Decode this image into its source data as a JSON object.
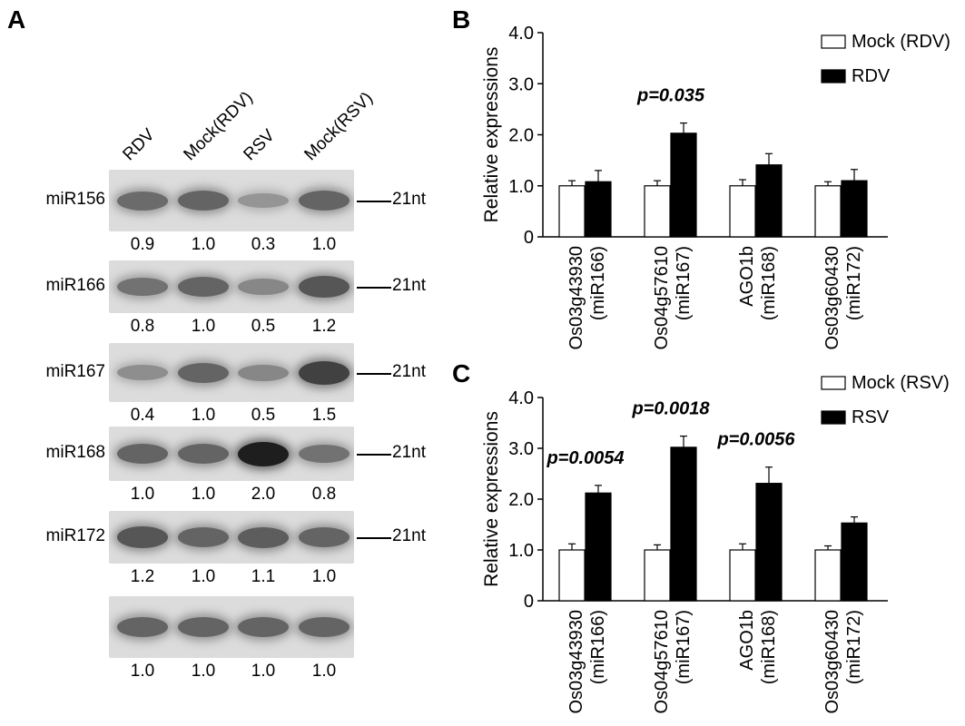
{
  "panels": {
    "a": "A",
    "b": "B",
    "c": "C"
  },
  "blot": {
    "lanes": [
      "RDV",
      "Mock(RDV)",
      "RSV",
      "Mock(RSV)"
    ],
    "rows": [
      {
        "label": "miR156",
        "marker": "21nt",
        "values": [
          "0.9",
          "1.0",
          "0.3",
          "1.0"
        ],
        "intensity": [
          0.9,
          1.0,
          0.3,
          1.0
        ]
      },
      {
        "label": "miR166",
        "marker": "21nt",
        "values": [
          "0.8",
          "1.0",
          "0.5",
          "1.2"
        ],
        "intensity": [
          0.8,
          1.0,
          0.5,
          1.2
        ]
      },
      {
        "label": "miR167",
        "marker": "21nt",
        "values": [
          "0.4",
          "1.0",
          "0.5",
          "1.5"
        ],
        "intensity": [
          0.4,
          1.0,
          0.5,
          1.5
        ]
      },
      {
        "label": "miR168",
        "marker": "21nt",
        "values": [
          "1.0",
          "1.0",
          "2.0",
          "0.8"
        ],
        "intensity": [
          1.0,
          1.0,
          2.0,
          0.8
        ]
      },
      {
        "label": "miR172",
        "marker": "21nt",
        "values": [
          "1.2",
          "1.0",
          "1.1",
          "1.0"
        ],
        "intensity": [
          1.2,
          1.0,
          1.1,
          1.0
        ]
      },
      {
        "label": "",
        "marker": "",
        "values": [
          "1.0",
          "1.0",
          "1.0",
          "1.0"
        ],
        "intensity": [
          1.0,
          1.0,
          1.0,
          1.0
        ]
      }
    ]
  },
  "chart_data": [
    {
      "type": "bar",
      "panel": "B",
      "ylabel": "Relative expressions",
      "ylim": [
        0,
        4
      ],
      "yticks": [
        "0",
        "1.0",
        "2.0",
        "3.0",
        "4.0"
      ],
      "categories": [
        [
          "Os03g43930",
          "(miR166)"
        ],
        [
          "Os04g57610",
          "(miR167)"
        ],
        [
          "AGO1b",
          "(miR168)"
        ],
        [
          "Os03g60430",
          "(miR172)"
        ]
      ],
      "series": [
        {
          "name": "Mock (RDV)",
          "values": [
            1.0,
            1.0,
            1.0,
            1.0
          ],
          "errors": [
            0.1,
            0.1,
            0.12,
            0.08
          ],
          "fill": "#ffffff"
        },
        {
          "name": "RDV",
          "values": [
            1.08,
            2.03,
            1.41,
            1.1
          ],
          "errors": [
            0.22,
            0.2,
            0.22,
            0.22
          ],
          "fill": "#000000"
        }
      ],
      "annotations": [
        {
          "category": 1,
          "text": "p=0.035"
        }
      ],
      "legend": "top-right"
    },
    {
      "type": "bar",
      "panel": "C",
      "ylabel": "Relative expressions",
      "ylim": [
        0,
        4
      ],
      "yticks": [
        "0",
        "1.0",
        "2.0",
        "3.0",
        "4.0"
      ],
      "categories": [
        [
          "Os03g43930",
          "(miR166)"
        ],
        [
          "Os04g57610",
          "(miR167)"
        ],
        [
          "AGO1b",
          "(miR168)"
        ],
        [
          "Os03g60430",
          "(miR172)"
        ]
      ],
      "series": [
        {
          "name": "Mock (RSV)",
          "values": [
            1.0,
            1.0,
            1.0,
            1.0
          ],
          "errors": [
            0.12,
            0.1,
            0.12,
            0.08
          ],
          "fill": "#ffffff"
        },
        {
          "name": "RSV",
          "values": [
            2.12,
            3.02,
            2.31,
            1.53
          ],
          "errors": [
            0.15,
            0.22,
            0.32,
            0.12
          ],
          "fill": "#000000"
        }
      ],
      "annotations": [
        {
          "category": 0,
          "text": "p=0.0054"
        },
        {
          "category": 1,
          "text": "p=0.0018"
        },
        {
          "category": 2,
          "text": "p=0.0056"
        }
      ],
      "legend": "top-right"
    }
  ]
}
